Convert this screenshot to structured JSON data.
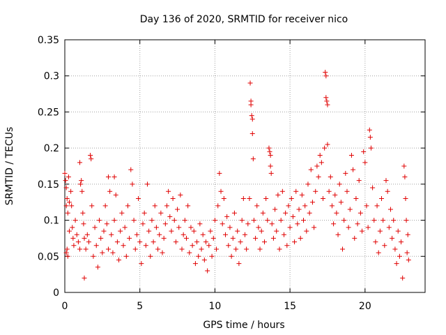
{
  "chart_data": {
    "type": "scatter",
    "title": "Day 136 of 2020, SRMTID for receiver nico",
    "xlabel": "GPS time / hours",
    "ylabel": "SRMTID / TECUs",
    "xlim": [
      0,
      24
    ],
    "ylim": [
      0,
      0.35
    ],
    "xticks": [
      0,
      5,
      10,
      15,
      20
    ],
    "xtick_labels": [
      "0",
      "5",
      "10",
      "15",
      "20"
    ],
    "yticks": [
      0,
      0.05,
      0.1,
      0.15,
      0.2,
      0.25,
      0.3,
      0.35
    ],
    "ytick_labels": [
      "0",
      "0.05",
      "0.1",
      "0.15",
      "0.2",
      "0.25",
      "0.3",
      "0.35"
    ],
    "grid": true,
    "marker": "+",
    "series": [
      {
        "name": "SRMTID",
        "color": "#e00000",
        "points": [
          [
            0.0,
            0.165
          ],
          [
            0.05,
            0.155
          ],
          [
            0.1,
            0.145
          ],
          [
            0.1,
            0.12
          ],
          [
            0.15,
            0.13
          ],
          [
            0.2,
            0.11
          ],
          [
            0.25,
            0.16
          ],
          [
            0.3,
            0.125
          ],
          [
            0.1,
            0.055
          ],
          [
            0.15,
            0.06
          ],
          [
            0.2,
            0.05
          ],
          [
            0.3,
            0.085
          ],
          [
            0.4,
            0.14
          ],
          [
            0.45,
            0.12
          ],
          [
            0.5,
            0.09
          ],
          [
            0.55,
            0.075
          ],
          [
            0.6,
            0.065
          ],
          [
            0.7,
            0.1
          ],
          [
            0.8,
            0.08
          ],
          [
            0.9,
            0.07
          ],
          [
            1.0,
            0.06
          ],
          [
            1.0,
            0.18
          ],
          [
            1.05,
            0.15
          ],
          [
            1.1,
            0.155
          ],
          [
            1.15,
            0.14
          ],
          [
            1.2,
            0.11
          ],
          [
            1.25,
            0.095
          ],
          [
            1.3,
            0.075
          ],
          [
            1.3,
            0.02
          ],
          [
            1.4,
            0.06
          ],
          [
            1.5,
            0.08
          ],
          [
            1.6,
            0.07
          ],
          [
            1.7,
            0.19
          ],
          [
            1.75,
            0.185
          ],
          [
            1.8,
            0.12
          ],
          [
            1.9,
            0.05
          ],
          [
            2.0,
            0.09
          ],
          [
            2.1,
            0.065
          ],
          [
            2.2,
            0.035
          ],
          [
            2.3,
            0.1
          ],
          [
            2.4,
            0.075
          ],
          [
            2.5,
            0.055
          ],
          [
            2.6,
            0.085
          ],
          [
            2.7,
            0.12
          ],
          [
            2.8,
            0.095
          ],
          [
            2.9,
            0.06
          ],
          [
            2.9,
            0.16
          ],
          [
            3.0,
            0.14
          ],
          [
            3.1,
            0.08
          ],
          [
            3.2,
            0.055
          ],
          [
            3.3,
            0.1
          ],
          [
            3.3,
            0.16
          ],
          [
            3.4,
            0.135
          ],
          [
            3.5,
            0.07
          ],
          [
            3.6,
            0.045
          ],
          [
            3.7,
            0.085
          ],
          [
            3.8,
            0.11
          ],
          [
            3.9,
            0.065
          ],
          [
            4.0,
            0.09
          ],
          [
            4.1,
            0.05
          ],
          [
            4.2,
            0.12
          ],
          [
            4.3,
            0.075
          ],
          [
            4.4,
            0.17
          ],
          [
            4.5,
            0.15
          ],
          [
            4.6,
            0.1
          ],
          [
            4.7,
            0.06
          ],
          [
            4.8,
            0.08
          ],
          [
            4.9,
            0.13
          ],
          [
            5.0,
            0.07
          ],
          [
            5.1,
            0.04
          ],
          [
            5.2,
            0.095
          ],
          [
            5.3,
            0.11
          ],
          [
            5.4,
            0.065
          ],
          [
            5.5,
            0.15
          ],
          [
            5.6,
            0.085
          ],
          [
            5.7,
            0.05
          ],
          [
            5.8,
            0.1
          ],
          [
            5.9,
            0.07
          ],
          [
            6.0,
            0.12
          ],
          [
            6.1,
            0.09
          ],
          [
            6.2,
            0.06
          ],
          [
            6.3,
            0.08
          ],
          [
            6.4,
            0.11
          ],
          [
            6.5,
            0.055
          ],
          [
            6.6,
            0.075
          ],
          [
            6.7,
            0.095
          ],
          [
            6.8,
            0.12
          ],
          [
            6.9,
            0.14
          ],
          [
            7.0,
            0.105
          ],
          [
            7.1,
            0.085
          ],
          [
            7.2,
            0.13
          ],
          [
            7.3,
            0.1
          ],
          [
            7.4,
            0.07
          ],
          [
            7.5,
            0.115
          ],
          [
            7.6,
            0.09
          ],
          [
            7.7,
            0.135
          ],
          [
            7.8,
            0.06
          ],
          [
            7.9,
            0.08
          ],
          [
            8.0,
            0.1
          ],
          [
            8.1,
            0.075
          ],
          [
            8.2,
            0.12
          ],
          [
            8.3,
            0.055
          ],
          [
            8.4,
            0.09
          ],
          [
            8.5,
            0.065
          ],
          [
            8.6,
            0.085
          ],
          [
            8.7,
            0.04
          ],
          [
            8.8,
            0.07
          ],
          [
            8.9,
            0.05
          ],
          [
            9.0,
            0.095
          ],
          [
            9.1,
            0.06
          ],
          [
            9.2,
            0.08
          ],
          [
            9.3,
            0.045
          ],
          [
            9.4,
            0.07
          ],
          [
            9.5,
            0.03
          ],
          [
            9.6,
            0.065
          ],
          [
            9.7,
            0.085
          ],
          [
            9.8,
            0.05
          ],
          [
            9.9,
            0.075
          ],
          [
            10.0,
            0.1
          ],
          [
            10.1,
            0.06
          ],
          [
            10.2,
            0.12
          ],
          [
            10.3,
            0.165
          ],
          [
            10.4,
            0.14
          ],
          [
            10.5,
            0.095
          ],
          [
            10.6,
            0.13
          ],
          [
            10.7,
            0.08
          ],
          [
            10.8,
            0.105
          ],
          [
            10.9,
            0.065
          ],
          [
            11.0,
            0.09
          ],
          [
            11.1,
            0.05
          ],
          [
            11.2,
            0.075
          ],
          [
            11.3,
            0.11
          ],
          [
            11.4,
            0.06
          ],
          [
            11.5,
            0.085
          ],
          [
            11.6,
            0.04
          ],
          [
            11.7,
            0.07
          ],
          [
            11.8,
            0.1
          ],
          [
            11.9,
            0.13
          ],
          [
            12.0,
            0.08
          ],
          [
            12.1,
            0.06
          ],
          [
            12.2,
            0.095
          ],
          [
            12.3,
            0.13
          ],
          [
            12.35,
            0.29
          ],
          [
            12.4,
            0.265
          ],
          [
            12.4,
            0.26
          ],
          [
            12.45,
            0.245
          ],
          [
            12.5,
            0.24
          ],
          [
            12.5,
            0.22
          ],
          [
            12.55,
            0.185
          ],
          [
            12.6,
            0.1
          ],
          [
            12.7,
            0.075
          ],
          [
            12.8,
            0.12
          ],
          [
            12.9,
            0.09
          ],
          [
            13.0,
            0.06
          ],
          [
            13.1,
            0.085
          ],
          [
            13.2,
            0.11
          ],
          [
            13.3,
            0.07
          ],
          [
            13.4,
            0.13
          ],
          [
            13.5,
            0.1
          ],
          [
            13.6,
            0.2
          ],
          [
            13.65,
            0.195
          ],
          [
            13.7,
            0.19
          ],
          [
            13.7,
            0.175
          ],
          [
            13.75,
            0.165
          ],
          [
            13.8,
            0.095
          ],
          [
            13.9,
            0.075
          ],
          [
            14.0,
            0.115
          ],
          [
            14.1,
            0.085
          ],
          [
            14.2,
            0.135
          ],
          [
            14.3,
            0.06
          ],
          [
            14.4,
            0.1
          ],
          [
            14.5,
            0.14
          ],
          [
            14.6,
            0.08
          ],
          [
            14.7,
            0.11
          ],
          [
            14.8,
            0.065
          ],
          [
            14.9,
            0.12
          ],
          [
            15.0,
            0.09
          ],
          [
            15.1,
            0.13
          ],
          [
            15.2,
            0.105
          ],
          [
            15.3,
            0.07
          ],
          [
            15.4,
            0.14
          ],
          [
            15.5,
            0.095
          ],
          [
            15.6,
            0.115
          ],
          [
            15.7,
            0.075
          ],
          [
            15.8,
            0.135
          ],
          [
            15.9,
            0.1
          ],
          [
            16.0,
            0.12
          ],
          [
            16.1,
            0.085
          ],
          [
            16.2,
            0.15
          ],
          [
            16.3,
            0.11
          ],
          [
            16.4,
            0.17
          ],
          [
            16.5,
            0.125
          ],
          [
            16.6,
            0.09
          ],
          [
            16.7,
            0.14
          ],
          [
            16.8,
            0.175
          ],
          [
            16.9,
            0.16
          ],
          [
            17.0,
            0.19
          ],
          [
            17.1,
            0.18
          ],
          [
            17.2,
            0.13
          ],
          [
            17.3,
            0.2
          ],
          [
            17.35,
            0.305
          ],
          [
            17.4,
            0.3
          ],
          [
            17.4,
            0.27
          ],
          [
            17.45,
            0.265
          ],
          [
            17.5,
            0.26
          ],
          [
            17.5,
            0.205
          ],
          [
            17.6,
            0.14
          ],
          [
            17.7,
            0.16
          ],
          [
            17.8,
            0.12
          ],
          [
            17.9,
            0.095
          ],
          [
            18.0,
            0.135
          ],
          [
            18.1,
            0.11
          ],
          [
            18.2,
            0.08
          ],
          [
            18.3,
            0.15
          ],
          [
            18.4,
            0.125
          ],
          [
            18.5,
            0.06
          ],
          [
            18.6,
            0.1
          ],
          [
            18.7,
            0.165
          ],
          [
            18.8,
            0.14
          ],
          [
            18.9,
            0.09
          ],
          [
            19.0,
            0.115
          ],
          [
            19.1,
            0.19
          ],
          [
            19.2,
            0.17
          ],
          [
            19.3,
            0.075
          ],
          [
            19.4,
            0.13
          ],
          [
            19.5,
            0.095
          ],
          [
            19.6,
            0.155
          ],
          [
            19.7,
            0.11
          ],
          [
            19.8,
            0.085
          ],
          [
            19.9,
            0.195
          ],
          [
            20.0,
            0.18
          ],
          [
            20.1,
            0.12
          ],
          [
            20.2,
            0.09
          ],
          [
            20.3,
            0.225
          ],
          [
            20.35,
            0.215
          ],
          [
            20.4,
            0.2
          ],
          [
            20.5,
            0.145
          ],
          [
            20.6,
            0.1
          ],
          [
            20.7,
            0.07
          ],
          [
            20.8,
            0.12
          ],
          [
            20.9,
            0.055
          ],
          [
            21.0,
            0.085
          ],
          [
            21.1,
            0.13
          ],
          [
            21.2,
            0.1
          ],
          [
            21.3,
            0.065
          ],
          [
            21.4,
            0.155
          ],
          [
            21.5,
            0.14
          ],
          [
            21.6,
            0.09
          ],
          [
            21.7,
            0.115
          ],
          [
            21.8,
            0.075
          ],
          [
            21.9,
            0.1
          ],
          [
            22.0,
            0.06
          ],
          [
            22.1,
            0.04
          ],
          [
            22.2,
            0.085
          ],
          [
            22.3,
            0.05
          ],
          [
            22.4,
            0.07
          ],
          [
            22.5,
            0.02
          ],
          [
            22.6,
            0.175
          ],
          [
            22.65,
            0.16
          ],
          [
            22.7,
            0.13
          ],
          [
            22.75,
            0.1
          ],
          [
            22.8,
            0.055
          ],
          [
            22.85,
            0.08
          ],
          [
            22.9,
            0.045
          ]
        ]
      }
    ]
  }
}
